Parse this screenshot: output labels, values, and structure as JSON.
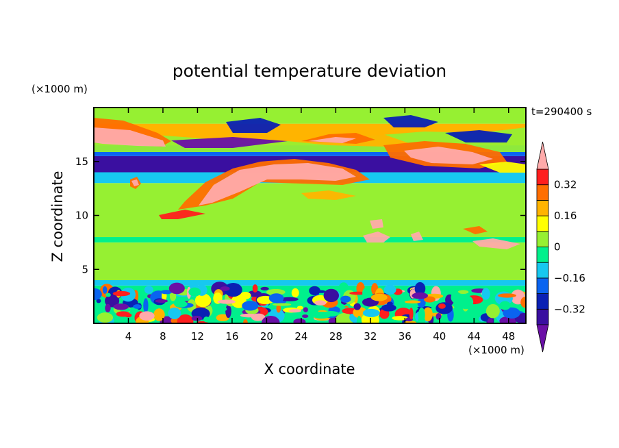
{
  "chart_data": {
    "type": "heatmap",
    "title": "potential temperature deviation",
    "xlabel": "X coordinate",
    "ylabel": "Z coordinate",
    "x_unit_label": "(×1000 m)",
    "y_unit_label": "(×1000 m)",
    "time_label": "t=290400 s",
    "xlim": [
      0,
      50
    ],
    "ylim": [
      0,
      20
    ],
    "x_ticks": [
      4,
      8,
      12,
      16,
      20,
      24,
      28,
      32,
      36,
      40,
      44,
      48
    ],
    "y_ticks": [
      5,
      10,
      15
    ],
    "colorbar": {
      "levels": [
        -0.48,
        -0.4,
        -0.32,
        -0.24,
        -0.16,
        -0.08,
        0,
        0.08,
        0.16,
        0.24,
        0.32,
        0.4,
        0.48
      ],
      "tick_values": [
        0.32,
        0.16,
        0,
        -0.16,
        -0.32
      ],
      "tick_labels": [
        "0.32",
        "0.16",
        "0",
        "−0.16",
        "−0.32"
      ],
      "colors": [
        "#6a0fa6",
        "#3a0fa0",
        "#0a20b4",
        "#0a64f0",
        "#17c8f0",
        "#00f08c",
        "#96f032",
        "#ffff00",
        "#ffb400",
        "#ff6e00",
        "#ff1e1e",
        "#ffaaaa"
      ],
      "extend": "both"
    },
    "bands": [
      {
        "z_bottom": 0.0,
        "z_top": 3.5,
        "note": "turbulent boundary layer, mixed values across full range"
      },
      {
        "z_bottom": 3.5,
        "z_top": 4.0,
        "value": -0.12
      },
      {
        "z_bottom": 4.0,
        "z_top": 7.5,
        "value": 0.04
      },
      {
        "z_bottom": 7.5,
        "z_top": 8.0,
        "value": -0.04
      },
      {
        "z_bottom": 8.0,
        "z_top": 13.0,
        "value": 0.0
      },
      {
        "z_bottom": 13.0,
        "z_top": 14.0,
        "value": -0.12
      },
      {
        "z_bottom": 14.0,
        "z_top": 15.5,
        "value": -0.36
      },
      {
        "z_bottom": 15.5,
        "z_top": 16.5,
        "value": -0.2
      },
      {
        "z_bottom": 16.5,
        "z_top": 18.5,
        "value": 0.2
      },
      {
        "z_bottom": 18.5,
        "z_top": 20.0,
        "value": 0.04
      }
    ],
    "grid": false
  }
}
